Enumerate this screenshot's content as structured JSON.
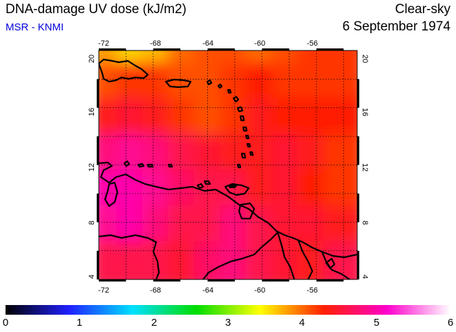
{
  "header": {
    "title": "DNA-damage UV dose (kJ/m2)",
    "source": "MSR - KNMI",
    "sky": "Clear-sky",
    "date": "6 September 1974"
  },
  "map": {
    "lon_range": [
      -72,
      -53
    ],
    "lat_range": [
      4,
      20
    ],
    "lon_ticks": [
      "-72",
      "-68",
      "-64",
      "-60",
      "-56"
    ],
    "lat_ticks": [
      "4",
      "8",
      "12",
      "16",
      "20"
    ],
    "grid": true
  },
  "colorbar": {
    "min": 0,
    "max": 6,
    "labels": [
      "0",
      "1",
      "2",
      "3",
      "4",
      "5",
      "6"
    ],
    "colors": [
      "#000000",
      "#2020ff",
      "#00e0ff",
      "#00dd00",
      "#ffff00",
      "#ff2000",
      "#ff00cc",
      "#ffffff"
    ]
  },
  "chart_data": {
    "type": "heatmap",
    "title": "DNA-damage UV dose (kJ/m2)",
    "xlabel": "",
    "ylabel": "",
    "x_range": [
      -72,
      -53
    ],
    "y_range": [
      4,
      20
    ],
    "value_range": [
      0,
      6
    ],
    "approx_field": [
      {
        "lat": 19.5,
        "values": [
          3.8,
          3.6,
          3.7,
          4.0,
          4.1,
          4.1,
          4.0,
          4.1,
          4.2,
          4.2
        ]
      },
      {
        "lat": 17.0,
        "values": [
          4.1,
          4.2,
          4.2,
          4.1,
          4.1,
          4.2,
          4.3,
          4.2,
          4.2,
          4.2
        ]
      },
      {
        "lat": 14.5,
        "values": [
          4.4,
          4.5,
          4.4,
          4.2,
          4.1,
          4.2,
          4.4,
          4.3,
          4.3,
          4.3
        ]
      },
      {
        "lat": 12.0,
        "values": [
          4.8,
          4.9,
          4.8,
          4.6,
          4.5,
          4.4,
          4.4,
          4.5,
          4.4,
          4.2
        ]
      },
      {
        "lat": 9.5,
        "values": [
          5.0,
          5.0,
          4.9,
          4.7,
          4.6,
          4.6,
          4.4,
          4.5,
          4.3,
          4.2
        ]
      },
      {
        "lat": 7.0,
        "values": [
          4.9,
          5.0,
          4.8,
          4.6,
          4.6,
          4.8,
          4.6,
          4.5,
          4.5,
          4.4
        ]
      },
      {
        "lat": 4.5,
        "values": [
          4.6,
          4.6,
          4.6,
          4.5,
          4.7,
          4.8,
          4.6,
          4.5,
          4.4,
          4.6
        ]
      }
    ]
  }
}
